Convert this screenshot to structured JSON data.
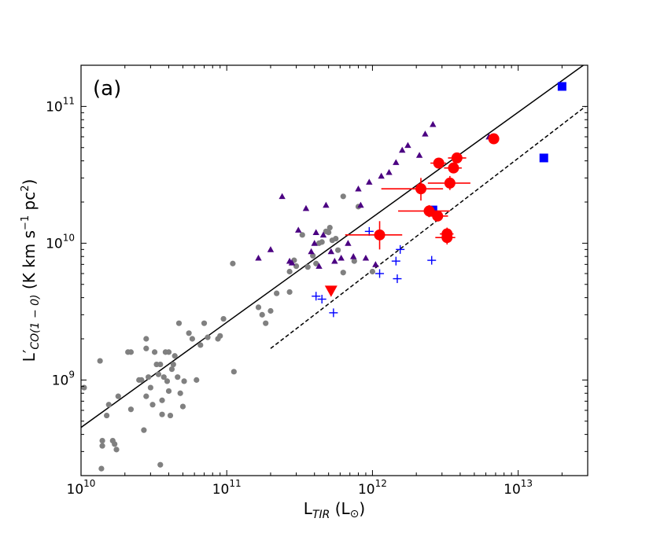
{
  "chart_data": {
    "type": "scatter",
    "title": "",
    "panel_label": "(a)",
    "xlabel": {
      "base": "L",
      "sub": "TIR",
      "unit": " (L",
      "unit_sym": "⊙",
      "unit_close": ")"
    },
    "ylabel": {
      "prefix": "L′",
      "sub": "CO(1 − 0)",
      "units": " (K km s",
      "exp1": "−1",
      "units2": " pc",
      "exp2": "2",
      "close": ")"
    },
    "xscale": "log",
    "yscale": "log",
    "xlim": [
      10000000000.0,
      30000000000000.0
    ],
    "ylim": [
      200000000.0,
      200000000000.0
    ],
    "x_ticks": [
      {
        "base": "10",
        "exp": "10"
      },
      {
        "base": "10",
        "exp": "11"
      },
      {
        "base": "10",
        "exp": "12"
      },
      {
        "base": "10",
        "exp": "13"
      }
    ],
    "y_ticks": [
      {
        "base": "10",
        "exp": "9"
      },
      {
        "base": "10",
        "exp": "10"
      },
      {
        "base": "10",
        "exp": "11"
      }
    ],
    "colors": {
      "gray": "#808080",
      "purple": "#4b0082",
      "blue": "#0000ff",
      "red": "#ff0000",
      "line": "#000000"
    },
    "lines": [
      {
        "name": "fit-solid",
        "style": "solid",
        "x": [
          10000000000.0,
          28000000000000.0
        ],
        "y": [
          450000000.0,
          200000000000.0
        ]
      },
      {
        "name": "fit-dashed",
        "style": "dashed",
        "x": [
          200000000000.0,
          29000000000000.0
        ],
        "y": [
          1700000000.0,
          100000000000.0
        ]
      }
    ],
    "series": [
      {
        "name": "gray-circles",
        "marker": "circle",
        "color": "gray",
        "points": [
          [
            10500000000.0,
            880000000.0
          ],
          [
            13500000000.0,
            1380000000.0
          ],
          [
            14000000000.0,
            360000000.0
          ],
          [
            14000000000.0,
            330000000.0
          ],
          [
            13800000000.0,
            225000000.0
          ],
          [
            15000000000.0,
            550000000.0
          ],
          [
            15500000000.0,
            660000000.0
          ],
          [
            16500000000.0,
            360000000.0
          ],
          [
            17000000000.0,
            340000000.0
          ],
          [
            17500000000.0,
            310000000.0
          ],
          [
            18000000000.0,
            760000000.0
          ],
          [
            21000000000.0,
            1600000000.0
          ],
          [
            22000000000.0,
            1600000000.0
          ],
          [
            22000000000.0,
            610000000.0
          ],
          [
            25000000000.0,
            1000000000.0
          ],
          [
            26000000000.0,
            1000000000.0
          ],
          [
            27000000000.0,
            430000000.0
          ],
          [
            28000000000.0,
            1700000000.0
          ],
          [
            28000000000.0,
            2000000000.0
          ],
          [
            28000000000.0,
            760000000.0
          ],
          [
            29000000000.0,
            1050000000.0
          ],
          [
            30000000000.0,
            880000000.0
          ],
          [
            31000000000.0,
            660000000.0
          ],
          [
            32000000000.0,
            1600000000.0
          ],
          [
            33000000000.0,
            1300000000.0
          ],
          [
            34000000000.0,
            1100000000.0
          ],
          [
            35000000000.0,
            240000000.0
          ],
          [
            35000000000.0,
            1300000000.0
          ],
          [
            36000000000.0,
            560000000.0
          ],
          [
            36000000000.0,
            710000000.0
          ],
          [
            37000000000.0,
            1050000000.0
          ],
          [
            38000000000.0,
            1600000000.0
          ],
          [
            39000000000.0,
            980000000.0
          ],
          [
            40000000000.0,
            1600000000.0
          ],
          [
            40000000000.0,
            830000000.0
          ],
          [
            41000000000.0,
            550000000.0
          ],
          [
            42000000000.0,
            1200000000.0
          ],
          [
            43000000000.0,
            1300000000.0
          ],
          [
            44000000000.0,
            1500000000.0
          ],
          [
            46000000000.0,
            1050000000.0
          ],
          [
            47000000000.0,
            2600000000.0
          ],
          [
            48000000000.0,
            800000000.0
          ],
          [
            50000000000.0,
            640000000.0
          ],
          [
            51000000000.0,
            980000000.0
          ],
          [
            55000000000.0,
            2200000000.0
          ],
          [
            58000000000.0,
            2000000000.0
          ],
          [
            62000000000.0,
            1000000000.0
          ],
          [
            66000000000.0,
            1800000000.0
          ],
          [
            70000000000.0,
            2600000000.0
          ],
          [
            74000000000.0,
            2050000000.0
          ],
          [
            87000000000.0,
            2000000000.0
          ],
          [
            90000000000.0,
            2100000000.0
          ],
          [
            95000000000.0,
            2800000000.0
          ],
          [
            112000000000.0,
            1150000000.0
          ],
          [
            110000000000.0,
            7100000000.0
          ],
          [
            165000000000.0,
            3400000000.0
          ],
          [
            175000000000.0,
            3000000000.0
          ],
          [
            185000000000.0,
            2600000000.0
          ],
          [
            200000000000.0,
            3200000000.0
          ],
          [
            220000000000.0,
            4300000000.0
          ],
          [
            270000000000.0,
            4400000000.0
          ],
          [
            270000000000.0,
            6200000000.0
          ],
          [
            290000000000.0,
            7500000000.0
          ],
          [
            300000000000.0,
            6800000000.0
          ],
          [
            330000000000.0,
            11500000000.0
          ],
          [
            360000000000.0,
            6700000000.0
          ],
          [
            390000000000.0,
            8100000000.0
          ],
          [
            410000000000.0,
            7100000000.0
          ],
          [
            430000000000.0,
            10000000000.0
          ],
          [
            450000000000.0,
            10200000000.0
          ],
          [
            480000000000.0,
            12200000000.0
          ],
          [
            500000000000.0,
            12000000000.0
          ],
          [
            510000000000.0,
            13000000000.0
          ],
          [
            530000000000.0,
            10500000000.0
          ],
          [
            560000000000.0,
            10800000000.0
          ],
          [
            580000000000.0,
            8900000000.0
          ],
          [
            630000000000.0,
            22000000000.0
          ],
          [
            630000000000.0,
            6100000000.0
          ],
          [
            750000000000.0,
            7400000000.0
          ],
          [
            800000000000.0,
            18500000000.0
          ],
          [
            1000000000000.0,
            6200000000.0
          ]
        ]
      },
      {
        "name": "purple-triangles",
        "marker": "triangle",
        "color": "purple",
        "points": [
          [
            165000000000.0,
            7800000000.0
          ],
          [
            200000000000.0,
            9000000000.0
          ],
          [
            240000000000.0,
            22000000000.0
          ],
          [
            270000000000.0,
            7400000000.0
          ],
          [
            280000000000.0,
            7200000000.0
          ],
          [
            310000000000.0,
            12500000000.0
          ],
          [
            350000000000.0,
            18000000000.0
          ],
          [
            380000000000.0,
            8700000000.0
          ],
          [
            400000000000.0,
            10000000000.0
          ],
          [
            410000000000.0,
            12000000000.0
          ],
          [
            430000000000.0,
            6800000000.0
          ],
          [
            460000000000.0,
            11500000000.0
          ],
          [
            480000000000.0,
            19000000000.0
          ],
          [
            520000000000.0,
            8700000000.0
          ],
          [
            550000000000.0,
            7400000000.0
          ],
          [
            610000000000.0,
            7800000000.0
          ],
          [
            680000000000.0,
            10000000000.0
          ],
          [
            740000000000.0,
            8000000000.0
          ],
          [
            800000000000.0,
            25000000000.0
          ],
          [
            830000000000.0,
            19000000000.0
          ],
          [
            900000000000.0,
            7800000000.0
          ],
          [
            950000000000.0,
            28000000000.0
          ],
          [
            1050000000000.0,
            7000000000.0
          ],
          [
            1150000000000.0,
            31000000000.0
          ],
          [
            1300000000000.0,
            33000000000.0
          ],
          [
            1450000000000.0,
            39000000000.0
          ],
          [
            1600000000000.0,
            48000000000.0
          ],
          [
            1750000000000.0,
            52000000000.0
          ],
          [
            2100000000000.0,
            44000000000.0
          ],
          [
            2300000000000.0,
            63000000000.0
          ],
          [
            2600000000000.0,
            74000000000.0
          ],
          [
            6300000000000.0,
            60000000000.0
          ]
        ]
      },
      {
        "name": "blue-crosses",
        "marker": "plus",
        "color": "blue",
        "points": [
          [
            410000000000.0,
            4100000000.0
          ],
          [
            450000000000.0,
            3900000000.0
          ],
          [
            540000000000.0,
            3100000000.0
          ],
          [
            950000000000.0,
            12200000000.0
          ],
          [
            1120000000000.0,
            6000000000.0
          ],
          [
            1450000000000.0,
            7400000000.0
          ],
          [
            1480000000000.0,
            5500000000.0
          ],
          [
            1550000000000.0,
            9000000000.0
          ],
          [
            2550000000000.0,
            7500000000.0
          ]
        ]
      },
      {
        "name": "blue-squares",
        "marker": "square",
        "color": "blue",
        "points": [
          [
            2600000000000.0,
            17500000000.0
          ],
          [
            15000000000000.0,
            42000000000.0
          ],
          [
            20000000000000.0,
            140000000000.0
          ]
        ]
      },
      {
        "name": "red-circles-errorbars",
        "marker": "bigcircle",
        "color": "red",
        "points": [
          [
            1120000000000.0,
            11500000000.0,
            650000000000.0,
            1600000000000.0,
            9000000000.0,
            14500000000.0
          ],
          [
            2150000000000.0,
            25000000000.0,
            1150000000000.0,
            3050000000000.0,
            20500000000.0,
            30000000000.0
          ],
          [
            2450000000000.0,
            17200000000.0,
            1500000000000.0,
            3400000000000.0,
            15500000000.0,
            19000000000.0
          ],
          [
            2800000000000.0,
            15800000000.0,
            2400000000000.0,
            3300000000000.0,
            14500000000.0,
            17200000000.0
          ],
          [
            2850000000000.0,
            38500000000.0,
            2500000000000.0,
            3200000000000.0,
            35500000000.0,
            41500000000.0
          ],
          [
            3250000000000.0,
            11000000000.0,
            2700000000000.0,
            3700000000000.0,
            9800000000.0,
            12500000000.0
          ],
          [
            3250000000000.0,
            11700000000.0,
            2900000000000.0,
            3600000000000.0,
            10500000000.0,
            13000000000.0
          ],
          [
            3400000000000.0,
            27500000000.0,
            2400000000000.0,
            4700000000000.0,
            24500000000.0,
            31000000000.0
          ],
          [
            3600000000000.0,
            35500000000.0,
            3100000000000.0,
            4100000000000.0,
            32500000000.0,
            39000000000.0
          ],
          [
            3800000000000.0,
            42000000000.0,
            3300000000000.0,
            4400000000000.0,
            39000000000.0,
            45000000000.0
          ],
          [
            6800000000000.0,
            58000000000.0,
            6300000000000.0,
            7400000000000.0,
            55000000000.0,
            61000000000.0
          ]
        ]
      },
      {
        "name": "red-upper-limit",
        "marker": "downtriangle",
        "color": "red",
        "points": [
          [
            520000000000.0,
            4500000000.0
          ]
        ]
      }
    ]
  }
}
